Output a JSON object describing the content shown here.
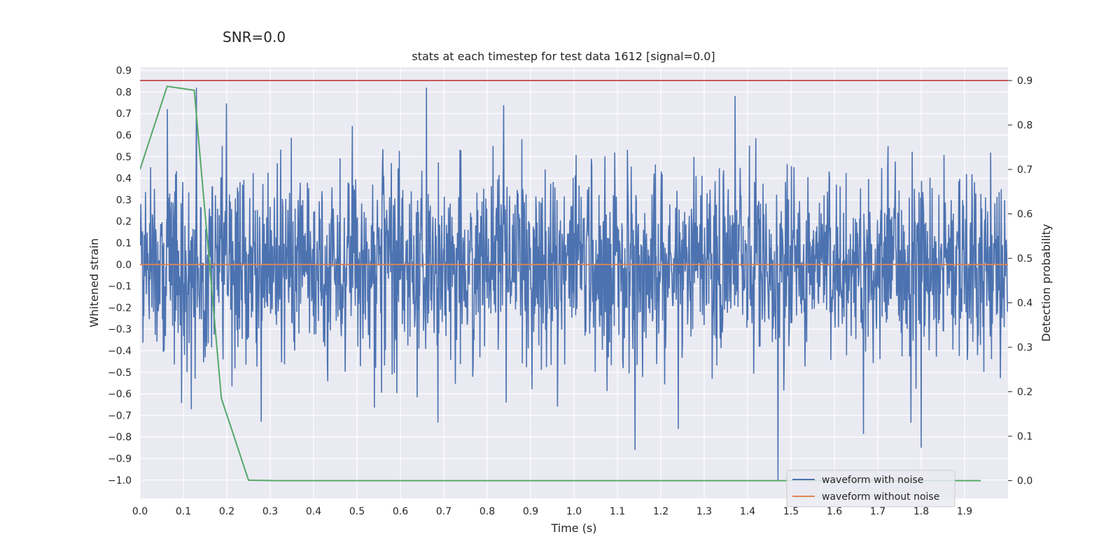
{
  "chart_data": {
    "type": "line",
    "suptitle": "SNR=0.0",
    "title": "stats at each timestep for test data 1612 [signal=0.0]",
    "xlabel": "Time (s)",
    "ylabel_left": "Whitened strain",
    "ylabel_right": "Detection probability",
    "xlim": [
      0.0,
      2.0
    ],
    "ylim_left": [
      -1.085,
      0.915
    ],
    "ylim_right": [
      -0.04,
      0.93
    ],
    "grid": true,
    "legend_position": "lower-right",
    "x_ticks": [
      "0.0",
      "0.1",
      "0.2",
      "0.3",
      "0.4",
      "0.5",
      "0.6",
      "0.7",
      "0.8",
      "0.9",
      "1.0",
      "1.1",
      "1.2",
      "1.3",
      "1.4",
      "1.5",
      "1.6",
      "1.7",
      "1.8",
      "1.9"
    ],
    "y_left_ticks": [
      "0.9",
      "0.8",
      "0.7",
      "0.6",
      "0.5",
      "0.4",
      "0.3",
      "0.2",
      "0.1",
      "0.0",
      "−0.1",
      "−0.2",
      "−0.3",
      "−0.4",
      "−0.5",
      "−0.6",
      "−0.7",
      "−0.8",
      "−0.9",
      "−1.0"
    ],
    "y_right_ticks": [
      "0.9",
      "0.8",
      "0.7",
      "0.6",
      "0.5",
      "0.4",
      "0.3",
      "0.2",
      "0.1",
      "0.0"
    ],
    "series": [
      {
        "name": "waveform with noise",
        "axis": "left",
        "color": "#4c72b0",
        "description_points": 2048,
        "amplitude": 0.3,
        "x": [
          0.0,
          0.063,
          0.13,
          0.66,
          1.47,
          1.8
        ],
        "y": [
          0.1,
          0.72,
          0.82,
          0.82,
          -1.0,
          -0.85
        ]
      },
      {
        "name": "waveform without noise",
        "axis": "left",
        "color": "#dd8452",
        "x": [
          0.0,
          2.0
        ],
        "y": [
          0.0,
          0.0
        ]
      },
      {
        "axis": "right",
        "color": "#55a868",
        "x": [
          0.0,
          0.0625,
          0.125,
          0.1875,
          0.25,
          0.3125,
          0.375,
          0.4375,
          0.5,
          0.5625,
          0.625,
          0.6875,
          0.75,
          0.8125,
          0.875,
          0.9375,
          1.0,
          1.0625,
          1.125,
          1.1875,
          1.25,
          1.3125,
          1.375,
          1.4375,
          1.5,
          1.5625,
          1.625,
          1.6875,
          1.75,
          1.8125,
          1.875,
          1.9375
        ],
        "y": [
          0.7,
          0.887,
          0.878,
          0.185,
          0.001,
          0.0,
          0.0,
          0.0,
          0.0,
          0.0,
          0.0,
          0.0,
          0.0,
          0.0,
          0.0,
          0.0,
          0.0,
          0.0,
          0.0,
          0.0,
          0.0,
          0.0,
          0.0,
          0.0,
          0.0,
          0.0,
          0.0,
          0.0,
          0.0,
          0.0,
          0.0,
          0.0
        ]
      },
      {
        "axis": "right",
        "color": "#c44e52",
        "type": "hline",
        "y": 0.9
      }
    ]
  }
}
